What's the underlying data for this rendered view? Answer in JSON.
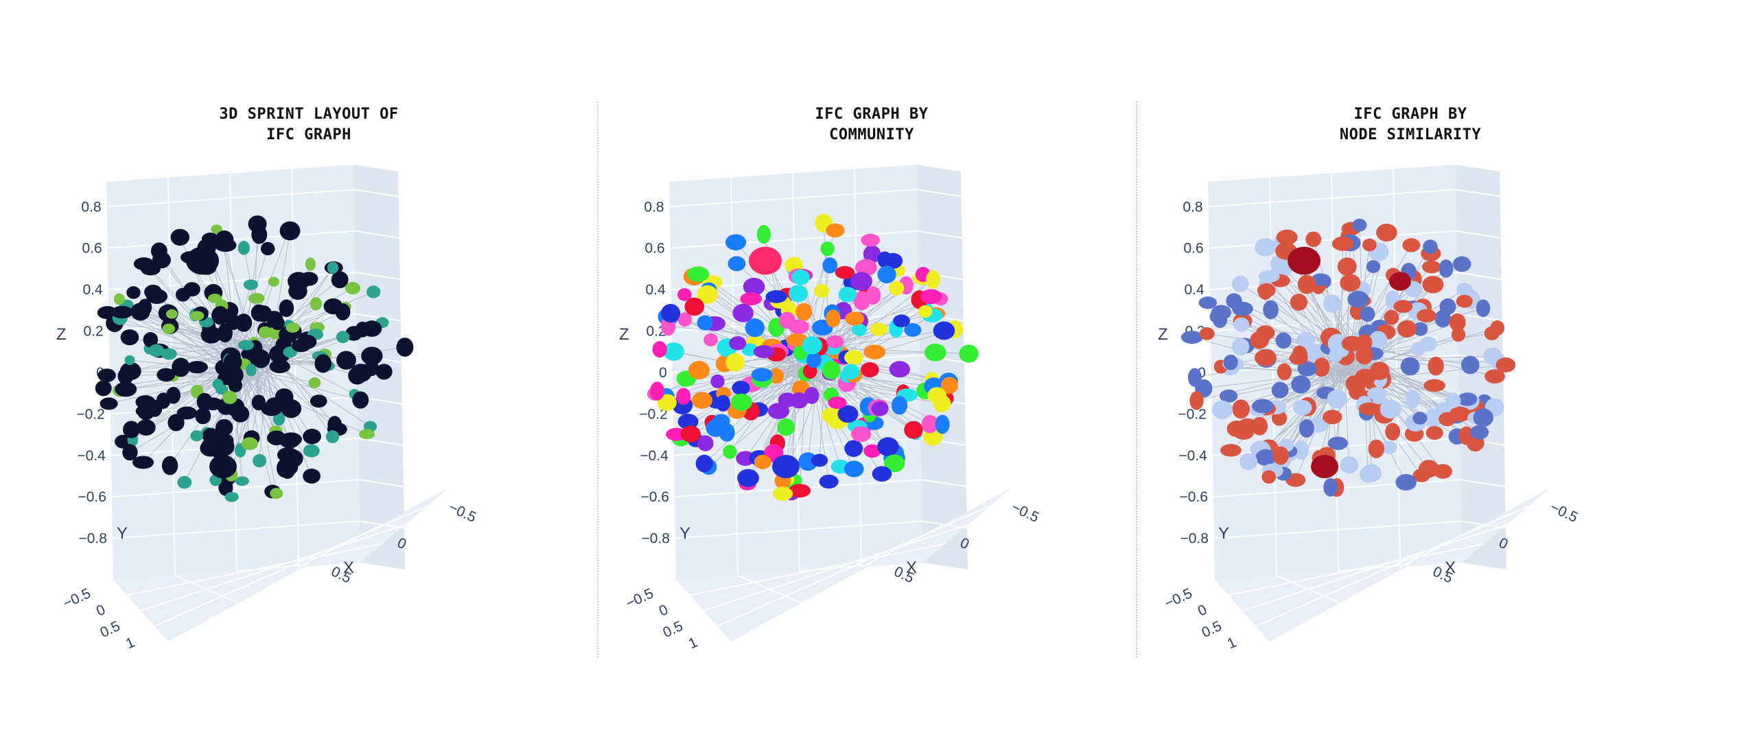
{
  "colors": {
    "scene_bg": "#e5ecf6",
    "grid": "#ffffff",
    "edge": "#8c94a6",
    "layout_dark": "#0c1230",
    "layout_teal": "#2ba38e",
    "layout_green": "#79c342",
    "similarity_high": "#a50f22",
    "similarity_mid": "#d9553f",
    "similarity_light": "#b9cdf3",
    "similarity_blue": "#5b72c9"
  },
  "panels": [
    {
      "title_line1": "3D SPRINT LAYOUT OF",
      "title_line2": "IFC GRAPH"
    },
    {
      "title_line1": "IFC GRAPH BY",
      "title_line2": "COMMUNITY"
    },
    {
      "title_line1": "IFC GRAPH BY",
      "title_line2": "NODE SIMILARITY"
    }
  ],
  "chart_data": [
    {
      "type": "scatter",
      "title": "3D SPRINT LAYOUT OF IFC GRAPH",
      "xlabel": "X",
      "ylabel": "Y",
      "zlabel": "Z",
      "x_ticks": [
        "−0.5",
        "0",
        "0.5"
      ],
      "y_ticks": [
        "−0.5",
        "0",
        "0.5",
        "1"
      ],
      "z_ticks": [
        "0.8",
        "0.6",
        "0.4",
        "0.2",
        "0",
        "−0.2",
        "−0.4",
        "−0.6",
        "−0.8"
      ],
      "xlim": [
        -0.6,
        0.8
      ],
      "ylim": [
        -0.6,
        1.0
      ],
      "zlim": [
        -0.9,
        0.85
      ],
      "color_scheme": "viridis-like (dark navy, teal, green)",
      "grid": true,
      "legend": "none"
    },
    {
      "type": "scatter",
      "title": "IFC GRAPH BY COMMUNITY",
      "xlabel": "X",
      "ylabel": "Y",
      "zlabel": "Z",
      "x_ticks": [
        "−0.5",
        "0",
        "0.5"
      ],
      "y_ticks": [
        "−0.5",
        "0",
        "0.5",
        "1"
      ],
      "z_ticks": [
        "0.8",
        "0.6",
        "0.4",
        "0.2",
        "0",
        "−0.2",
        "−0.4",
        "−0.6",
        "−0.8"
      ],
      "xlim": [
        -0.6,
        0.8
      ],
      "ylim": [
        -0.6,
        1.0
      ],
      "zlim": [
        -0.9,
        0.85
      ],
      "color_scheme": "categorical by community (magenta, green, blue, cyan, red, yellow, purple, orange)",
      "grid": true,
      "legend": "none"
    },
    {
      "type": "scatter",
      "title": "IFC GRAPH BY NODE SIMILARITY",
      "xlabel": "X",
      "ylabel": "Y",
      "zlabel": "Z",
      "x_ticks": [
        "−0.5",
        "0",
        "0.5"
      ],
      "y_ticks": [
        "−0.5",
        "0",
        "0.5",
        "1"
      ],
      "z_ticks": [
        "0.8",
        "0.6",
        "0.4",
        "0.2",
        "0",
        "−0.2",
        "−0.4",
        "−0.6",
        "−0.8"
      ],
      "xlim": [
        -0.6,
        0.8
      ],
      "ylim": [
        -0.6,
        1.0
      ],
      "zlim": [
        -0.9,
        0.85
      ],
      "color_scheme": "diverging coolwarm (blue to red)",
      "grid": true,
      "legend": "none"
    }
  ]
}
